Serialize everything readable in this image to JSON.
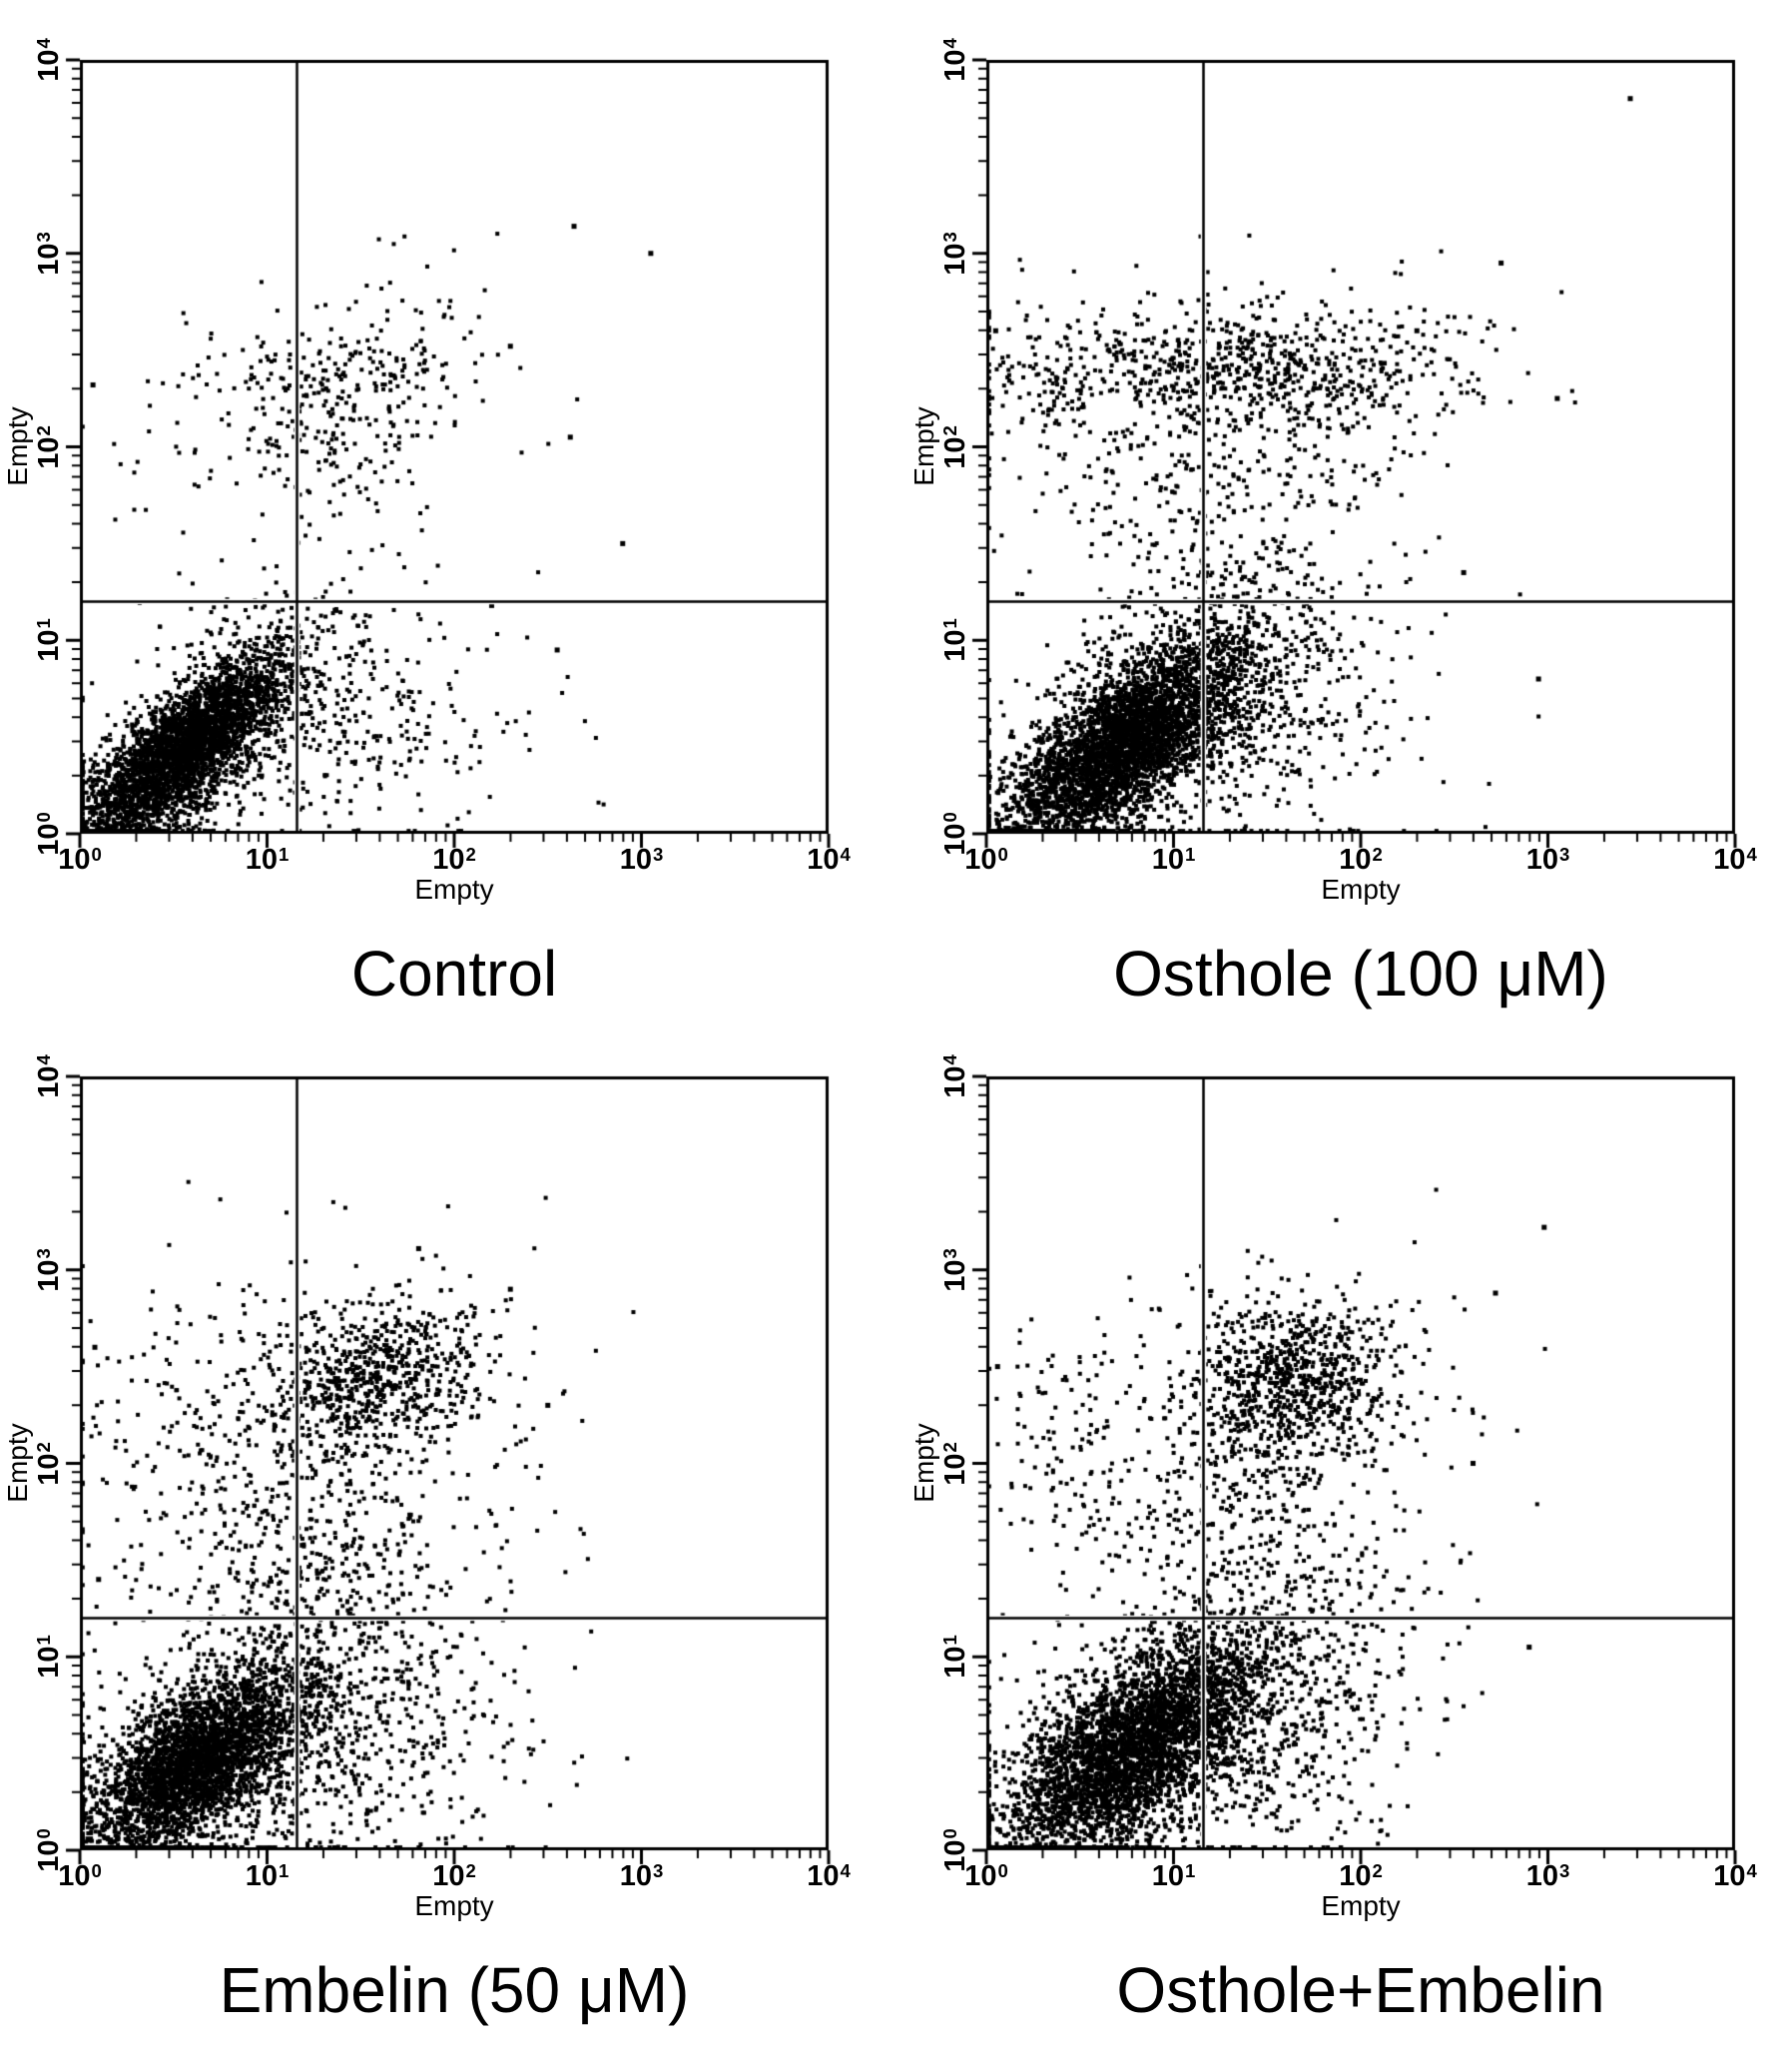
{
  "colors": {
    "background": "#ffffff",
    "axis": "#000000",
    "dots": "#000000",
    "gate": "#000000",
    "gate_halo": "#ffffff"
  },
  "chart_data": [
    {
      "type": "scatter",
      "title": "Control",
      "xlabel": "Empty",
      "ylabel": "Empty",
      "x_scale": "log",
      "y_scale": "log",
      "xlim": [
        1,
        10000
      ],
      "ylim": [
        1,
        10000
      ],
      "xticks": [
        "10^0",
        "10^1",
        "10^2",
        "10^3",
        "10^4"
      ],
      "yticks": [
        "10^0",
        "10^1",
        "10^2",
        "10^3",
        "10^4"
      ],
      "grid": false,
      "gate": {
        "x_log": 1.16,
        "y_log": 1.2
      },
      "seed": 101,
      "clusters": [
        {
          "cx": 0.55,
          "cy": 0.42,
          "s1": 0.34,
          "s2": 0.12,
          "angle": 42,
          "n": 3200
        },
        {
          "cx": 0.6,
          "cy": 0.45,
          "s1": 0.55,
          "s2": 0.22,
          "angle": 42,
          "n": 700
        },
        {
          "cx": 1.5,
          "cy": 0.55,
          "s1": 0.42,
          "s2": 0.3,
          "angle": 10,
          "n": 260
        },
        {
          "cx": 1.45,
          "cy": 2.3,
          "s1": 0.32,
          "s2": 0.22,
          "angle": 20,
          "n": 260
        },
        {
          "cx": 1.35,
          "cy": 2.05,
          "s1": 0.5,
          "s2": 0.35,
          "angle": 20,
          "n": 110
        },
        {
          "cx": 0.5,
          "cy": 2.2,
          "s1": 0.25,
          "s2": 0.3,
          "angle": 0,
          "n": 25
        }
      ],
      "outliers": [
        [
          3.05,
          3.0
        ],
        [
          2.64,
          3.14
        ],
        [
          2.3,
          2.52
        ],
        [
          2.62,
          2.05
        ],
        [
          2.9,
          1.5
        ],
        [
          0.07,
          2.32
        ],
        [
          2.2,
          1.18
        ],
        [
          2.55,
          0.95
        ]
      ]
    },
    {
      "type": "scatter",
      "title": "Osthole (100 μM)",
      "xlabel": "Empty",
      "ylabel": "Empty",
      "x_scale": "log",
      "y_scale": "log",
      "xlim": [
        1,
        10000
      ],
      "ylim": [
        1,
        10000
      ],
      "xticks": [
        "10^0",
        "10^1",
        "10^2",
        "10^3",
        "10^4"
      ],
      "yticks": [
        "10^0",
        "10^1",
        "10^2",
        "10^3",
        "10^4"
      ],
      "grid": false,
      "gate": {
        "x_log": 1.16,
        "y_log": 1.2
      },
      "seed": 202,
      "clusters": [
        {
          "cx": 0.72,
          "cy": 0.45,
          "s1": 0.38,
          "s2": 0.15,
          "angle": 40,
          "n": 3400
        },
        {
          "cx": 0.8,
          "cy": 0.5,
          "s1": 0.6,
          "s2": 0.28,
          "angle": 40,
          "n": 900
        },
        {
          "cx": 1.45,
          "cy": 0.6,
          "s1": 0.45,
          "s2": 0.35,
          "angle": 15,
          "n": 420
        },
        {
          "cx": 1.35,
          "cy": 2.42,
          "s1": 0.55,
          "s2": 0.14,
          "angle": 0,
          "n": 520
        },
        {
          "cx": 1.3,
          "cy": 2.3,
          "s1": 0.7,
          "s2": 0.3,
          "angle": 0,
          "n": 200
        },
        {
          "cx": 1.25,
          "cy": 1.7,
          "s1": 0.35,
          "s2": 0.45,
          "angle": 80,
          "n": 300
        },
        {
          "cx": 0.38,
          "cy": 2.3,
          "s1": 0.28,
          "s2": 0.22,
          "angle": 0,
          "n": 90
        },
        {
          "cx": 2.1,
          "cy": 2.35,
          "s1": 0.35,
          "s2": 0.3,
          "angle": 20,
          "n": 80
        }
      ],
      "outliers": [
        [
          3.44,
          3.8
        ],
        [
          2.75,
          2.95
        ],
        [
          3.05,
          2.25
        ],
        [
          2.55,
          1.35
        ],
        [
          2.95,
          0.8
        ],
        [
          0.05,
          2.6
        ],
        [
          2.3,
          2.6
        ]
      ]
    },
    {
      "type": "scatter",
      "title": "Embelin (50 μM)",
      "xlabel": "Empty",
      "ylabel": "Empty",
      "x_scale": "log",
      "y_scale": "log",
      "xlim": [
        1,
        10000
      ],
      "ylim": [
        1,
        10000
      ],
      "xticks": [
        "10^0",
        "10^1",
        "10^2",
        "10^3",
        "10^4"
      ],
      "yticks": [
        "10^0",
        "10^1",
        "10^2",
        "10^3",
        "10^4"
      ],
      "grid": false,
      "gate": {
        "x_log": 1.16,
        "y_log": 1.2
      },
      "seed": 303,
      "clusters": [
        {
          "cx": 0.62,
          "cy": 0.45,
          "s1": 0.33,
          "s2": 0.15,
          "angle": 38,
          "n": 2800
        },
        {
          "cx": 0.7,
          "cy": 0.5,
          "s1": 0.55,
          "s2": 0.28,
          "angle": 38,
          "n": 800
        },
        {
          "cx": 1.4,
          "cy": 0.55,
          "s1": 0.5,
          "s2": 0.35,
          "angle": 10,
          "n": 600
        },
        {
          "cx": 1.55,
          "cy": 2.42,
          "s1": 0.3,
          "s2": 0.2,
          "angle": 15,
          "n": 650
        },
        {
          "cx": 1.45,
          "cy": 2.35,
          "s1": 0.55,
          "s2": 0.38,
          "angle": 15,
          "n": 260
        },
        {
          "cx": 1.3,
          "cy": 1.55,
          "s1": 0.3,
          "s2": 0.5,
          "angle": 85,
          "n": 380
        },
        {
          "cx": 0.45,
          "cy": 2.15,
          "s1": 0.3,
          "s2": 0.4,
          "angle": 0,
          "n": 110
        }
      ],
      "outliers": [
        [
          1.81,
          3.11
        ],
        [
          2.3,
          2.9
        ],
        [
          0.08,
          2.6
        ],
        [
          2.5,
          2.3
        ],
        [
          0.1,
          1.4
        ]
      ]
    },
    {
      "type": "scatter",
      "title": "Osthole+Embelin",
      "xlabel": "Empty",
      "ylabel": "Empty",
      "x_scale": "log",
      "y_scale": "log",
      "xlim": [
        1,
        10000
      ],
      "ylim": [
        1,
        10000
      ],
      "xticks": [
        "10^0",
        "10^1",
        "10^2",
        "10^3",
        "10^4"
      ],
      "yticks": [
        "10^0",
        "10^1",
        "10^2",
        "10^3",
        "10^4"
      ],
      "grid": false,
      "gate": {
        "x_log": 1.16,
        "y_log": 1.2
      },
      "seed": 404,
      "clusters": [
        {
          "cx": 0.78,
          "cy": 0.52,
          "s1": 0.4,
          "s2": 0.18,
          "angle": 38,
          "n": 3200
        },
        {
          "cx": 0.85,
          "cy": 0.55,
          "s1": 0.6,
          "s2": 0.3,
          "angle": 38,
          "n": 900
        },
        {
          "cx": 1.5,
          "cy": 0.7,
          "s1": 0.45,
          "s2": 0.38,
          "angle": 15,
          "n": 500
        },
        {
          "cx": 1.62,
          "cy": 2.42,
          "s1": 0.28,
          "s2": 0.2,
          "angle": 15,
          "n": 700
        },
        {
          "cx": 1.5,
          "cy": 2.3,
          "s1": 0.5,
          "s2": 0.38,
          "angle": 15,
          "n": 280
        },
        {
          "cx": 1.3,
          "cy": 1.65,
          "s1": 0.3,
          "s2": 0.5,
          "angle": 85,
          "n": 300
        },
        {
          "cx": 0.5,
          "cy": 2.2,
          "s1": 0.3,
          "s2": 0.35,
          "angle": 0,
          "n": 90
        }
      ],
      "outliers": [
        [
          2.98,
          3.22
        ],
        [
          2.9,
          1.05
        ],
        [
          2.6,
          2.0
        ],
        [
          2.72,
          2.88
        ],
        [
          0.06,
          2.5
        ]
      ]
    }
  ]
}
